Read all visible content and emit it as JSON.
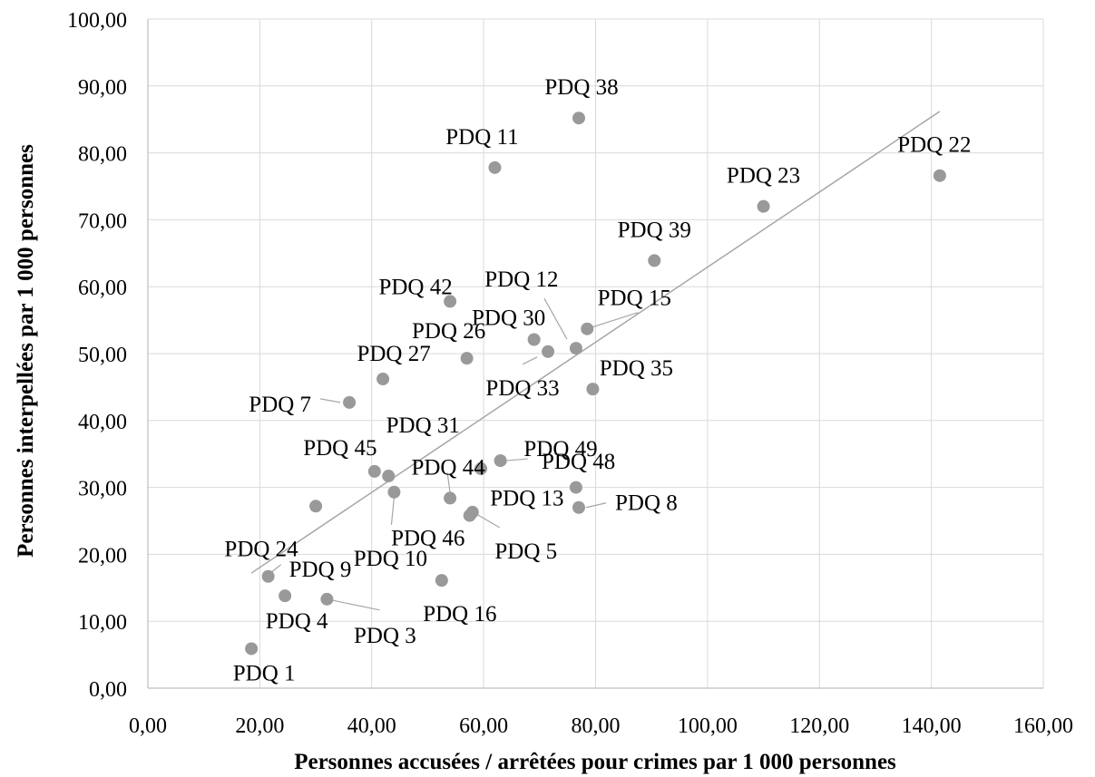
{
  "chart_data": {
    "type": "scatter",
    "xlabel": "Personnes accusées / arrêtées pour crimes par 1 000 personnes",
    "ylabel": "Personnes interpellées par 1 000 personnes",
    "xlim": [
      0,
      160
    ],
    "ylim": [
      0,
      100
    ],
    "x_ticks": [
      0,
      20,
      40,
      60,
      80,
      100,
      120,
      140,
      160
    ],
    "y_ticks": [
      0,
      10,
      20,
      30,
      40,
      50,
      60,
      70,
      80,
      90,
      100
    ],
    "x_tick_labels": [
      "0,00",
      "20,00",
      "40,00",
      "60,00",
      "80,00",
      "100,00",
      "120,00",
      "140,00",
      "160,00"
    ],
    "y_tick_labels": [
      "0,00",
      "10,00",
      "20,00",
      "30,00",
      "40,00",
      "50,00",
      "60,00",
      "70,00",
      "80,00",
      "90,00",
      "100,00"
    ],
    "grid": "vertical and horizontal",
    "legend": "none",
    "marker_color": "#999999",
    "trendline": {
      "type": "linear",
      "color": "#a6a6a6",
      "from": [
        18.5,
        17.2
      ],
      "to": [
        141.5,
        86.2
      ]
    },
    "points": [
      {
        "label": "PDQ 1",
        "x": 18.5,
        "y": 5.9
      },
      {
        "label": "PDQ 3",
        "x": 32.0,
        "y": 13.3
      },
      {
        "label": "PDQ 4",
        "x": 24.5,
        "y": 13.8
      },
      {
        "label": "PDQ 5",
        "x": 58.0,
        "y": 26.3
      },
      {
        "label": "PDQ 7",
        "x": 36.0,
        "y": 42.7
      },
      {
        "label": "PDQ 8",
        "x": 77.0,
        "y": 27.0
      },
      {
        "label": "PDQ 9",
        "x": 21.5,
        "y": 16.7
      },
      {
        "label": "PDQ 10",
        "x": 44.0,
        "y": 29.3
      },
      {
        "label": "PDQ 11",
        "x": 62.0,
        "y": 77.8
      },
      {
        "label": "PDQ 12",
        "x": 76.5,
        "y": 50.8
      },
      {
        "label": "PDQ 13",
        "x": 76.5,
        "y": 30.0
      },
      {
        "label": "PDQ 15",
        "x": 78.5,
        "y": 53.7
      },
      {
        "label": "PDQ 16",
        "x": 52.5,
        "y": 16.1
      },
      {
        "label": "PDQ 22",
        "x": 141.5,
        "y": 76.6
      },
      {
        "label": "PDQ 23",
        "x": 110.0,
        "y": 72.0
      },
      {
        "label": "PDQ 24",
        "x": 30.0,
        "y": 27.2
      },
      {
        "label": "PDQ 26",
        "x": 57.0,
        "y": 49.3
      },
      {
        "label": "PDQ 27",
        "x": 42.0,
        "y": 46.2
      },
      {
        "label": "PDQ 30",
        "x": 69.0,
        "y": 52.1
      },
      {
        "label": "PDQ 31",
        "x": 43.0,
        "y": 31.7
      },
      {
        "label": "PDQ 33",
        "x": 71.5,
        "y": 50.3
      },
      {
        "label": "PDQ 35",
        "x": 79.5,
        "y": 44.7
      },
      {
        "label": "PDQ 38",
        "x": 77.0,
        "y": 85.2
      },
      {
        "label": "PDQ 39",
        "x": 90.5,
        "y": 63.9
      },
      {
        "label": "PDQ 42",
        "x": 54.0,
        "y": 57.8
      },
      {
        "label": "PDQ 44",
        "x": 54.0,
        "y": 28.4
      },
      {
        "label": "PDQ 45",
        "x": 40.5,
        "y": 32.4
      },
      {
        "label": "PDQ 46",
        "x": 57.5,
        "y": 25.8
      },
      {
        "label": "PDQ 48",
        "x": 63.0,
        "y": 34.0
      },
      {
        "label": "PDQ 49",
        "x": 59.5,
        "y": 32.8
      }
    ]
  }
}
